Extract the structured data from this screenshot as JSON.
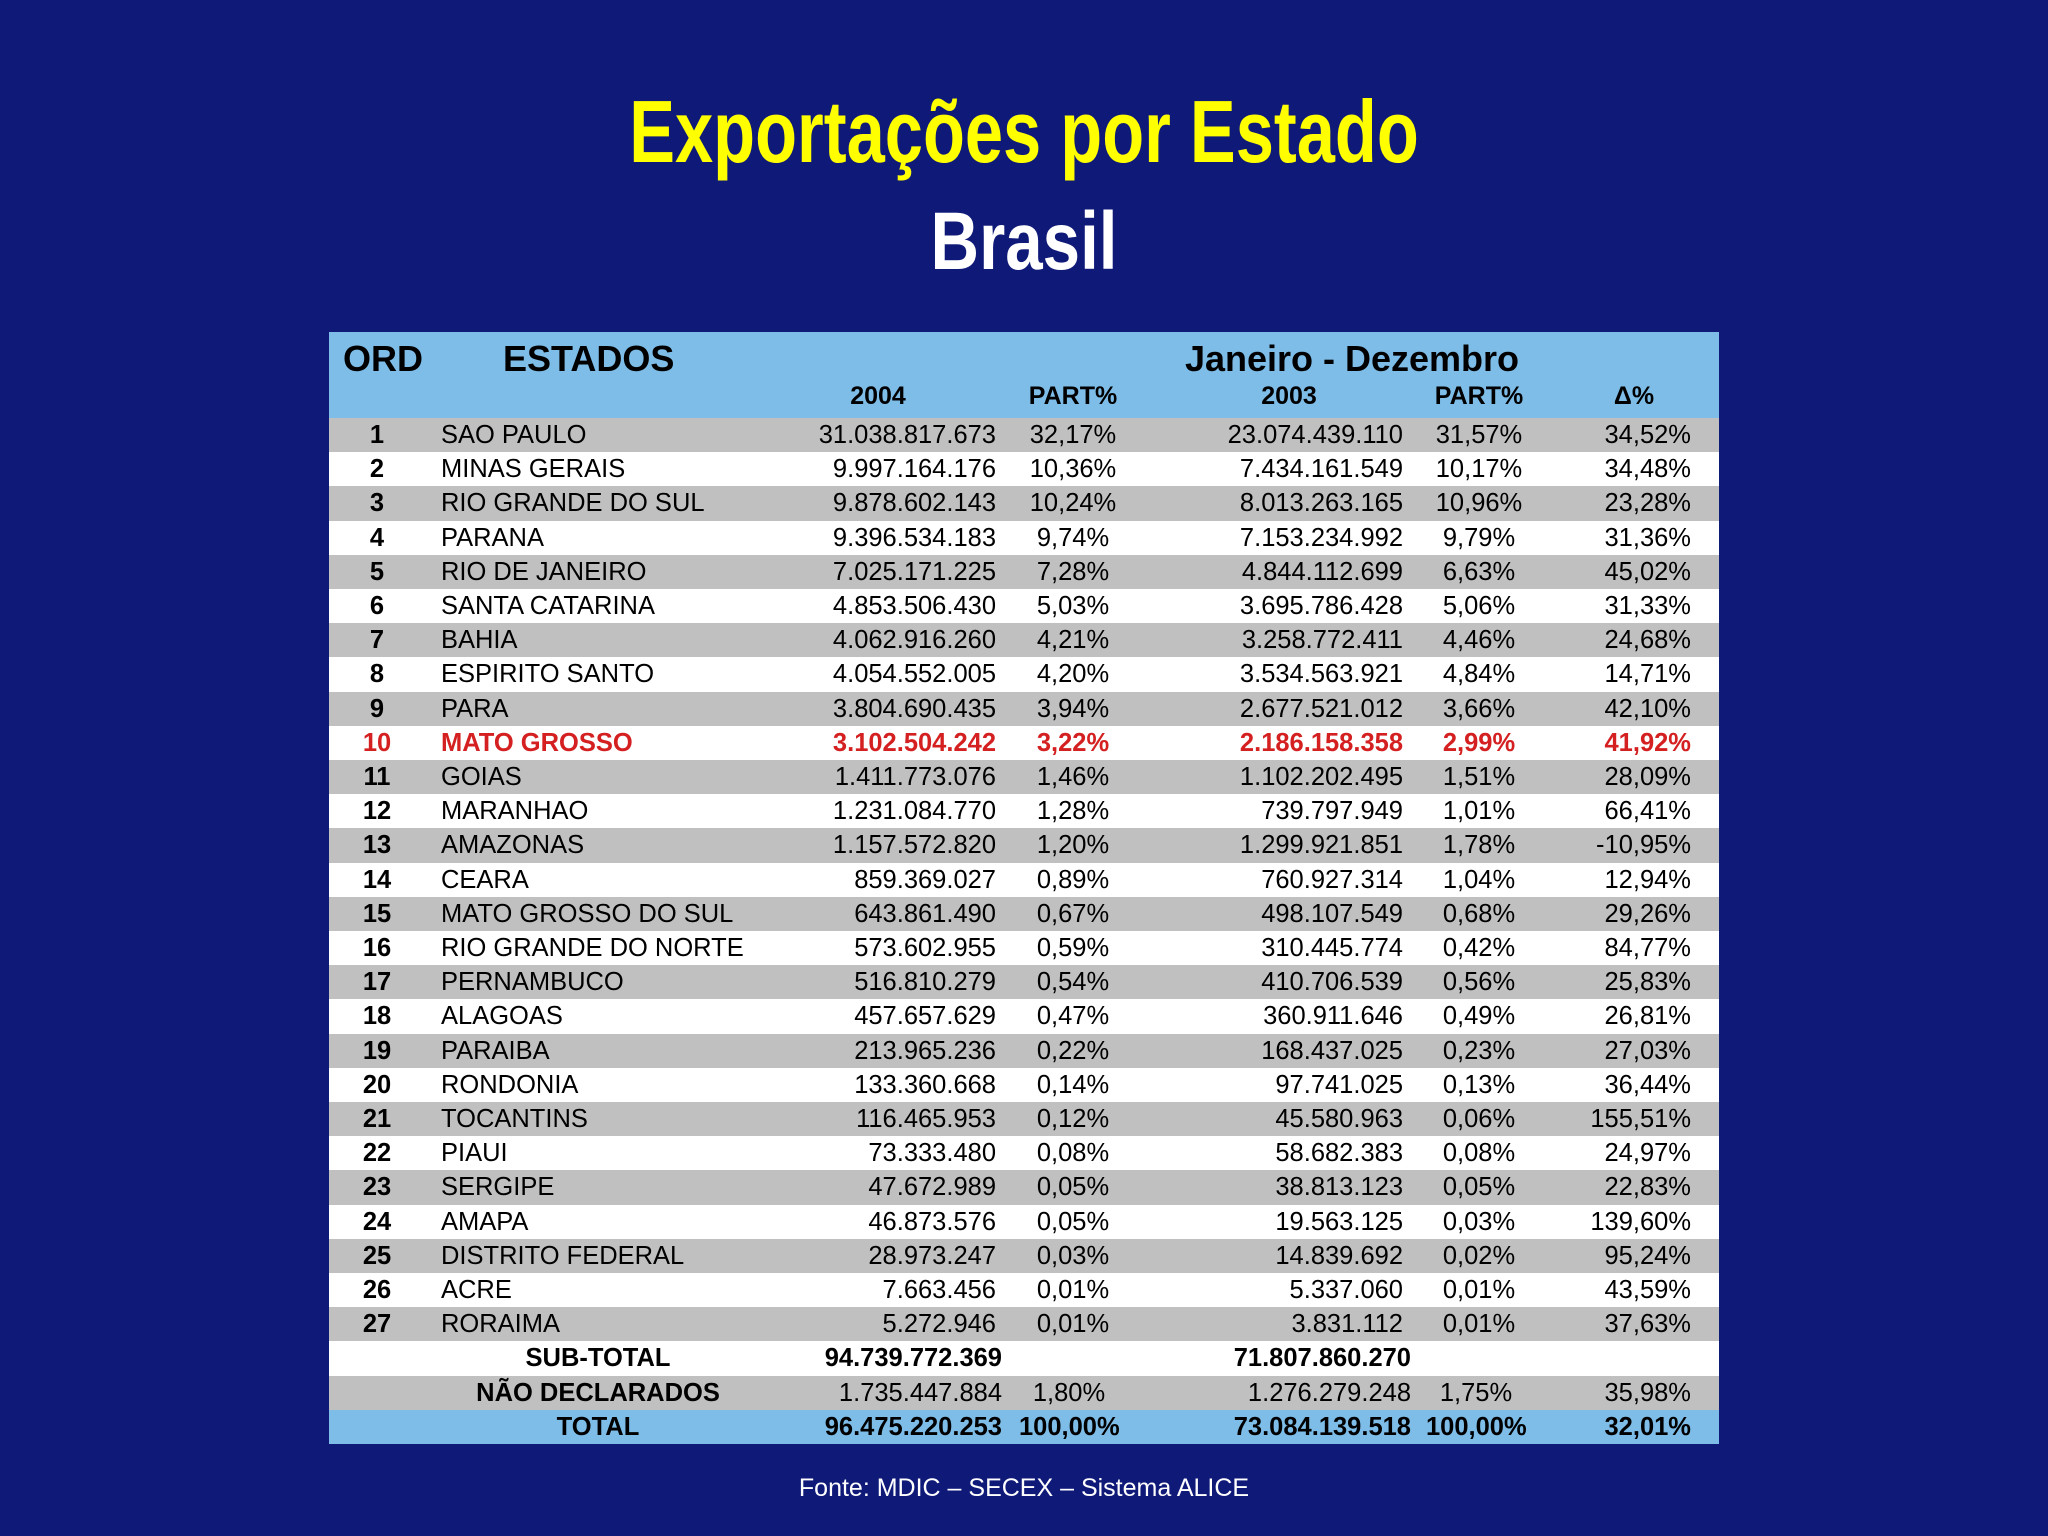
{
  "title": "Exportações por Estado",
  "subtitle": "Brasil",
  "table": {
    "headers": {
      "ord": "ORD",
      "estados": "ESTADOS",
      "period": "Janeiro - Dezembro",
      "y2004": "2004",
      "part2004": "PART%",
      "y2003": "2003",
      "part2003": "PART%",
      "delta": "Δ%"
    },
    "rows": [
      {
        "ord": "1",
        "name": "SAO PAULO",
        "v2004": "31.038.817.673",
        "p2004": "32,17%",
        "v2003": "23.074.439.110",
        "p2003": "31,57%",
        "delta": "34,52%"
      },
      {
        "ord": "2",
        "name": "MINAS GERAIS",
        "v2004": "9.997.164.176",
        "p2004": "10,36%",
        "v2003": "7.434.161.549",
        "p2003": "10,17%",
        "delta": "34,48%"
      },
      {
        "ord": "3",
        "name": "RIO GRANDE DO SUL",
        "v2004": "9.878.602.143",
        "p2004": "10,24%",
        "v2003": "8.013.263.165",
        "p2003": "10,96%",
        "delta": "23,28%"
      },
      {
        "ord": "4",
        "name": "PARANA",
        "v2004": "9.396.534.183",
        "p2004": "9,74%",
        "v2003": "7.153.234.992",
        "p2003": "9,79%",
        "delta": "31,36%"
      },
      {
        "ord": "5",
        "name": "RIO DE JANEIRO",
        "v2004": "7.025.171.225",
        "p2004": "7,28%",
        "v2003": "4.844.112.699",
        "p2003": "6,63%",
        "delta": "45,02%"
      },
      {
        "ord": "6",
        "name": "SANTA CATARINA",
        "v2004": "4.853.506.430",
        "p2004": "5,03%",
        "v2003": "3.695.786.428",
        "p2003": "5,06%",
        "delta": "31,33%"
      },
      {
        "ord": "7",
        "name": "BAHIA",
        "v2004": "4.062.916.260",
        "p2004": "4,21%",
        "v2003": "3.258.772.411",
        "p2003": "4,46%",
        "delta": "24,68%"
      },
      {
        "ord": "8",
        "name": "ESPIRITO SANTO",
        "v2004": "4.054.552.005",
        "p2004": "4,20%",
        "v2003": "3.534.563.921",
        "p2003": "4,84%",
        "delta": "14,71%"
      },
      {
        "ord": "9",
        "name": "PARA",
        "v2004": "3.804.690.435",
        "p2004": "3,94%",
        "v2003": "2.677.521.012",
        "p2003": "3,66%",
        "delta": "42,10%"
      },
      {
        "ord": "10",
        "name": "MATO GROSSO",
        "v2004": "3.102.504.242",
        "p2004": "3,22%",
        "v2003": "2.186.158.358",
        "p2003": "2,99%",
        "delta": "41,92%",
        "highlight": true
      },
      {
        "ord": "11",
        "name": "GOIAS",
        "v2004": "1.411.773.076",
        "p2004": "1,46%",
        "v2003": "1.102.202.495",
        "p2003": "1,51%",
        "delta": "28,09%"
      },
      {
        "ord": "12",
        "name": "MARANHAO",
        "v2004": "1.231.084.770",
        "p2004": "1,28%",
        "v2003": "739.797.949",
        "p2003": "1,01%",
        "delta": "66,41%"
      },
      {
        "ord": "13",
        "name": "AMAZONAS",
        "v2004": "1.157.572.820",
        "p2004": "1,20%",
        "v2003": "1.299.921.851",
        "p2003": "1,78%",
        "delta": "-10,95%"
      },
      {
        "ord": "14",
        "name": "CEARA",
        "v2004": "859.369.027",
        "p2004": "0,89%",
        "v2003": "760.927.314",
        "p2003": "1,04%",
        "delta": "12,94%"
      },
      {
        "ord": "15",
        "name": "MATO GROSSO DO SUL",
        "v2004": "643.861.490",
        "p2004": "0,67%",
        "v2003": "498.107.549",
        "p2003": "0,68%",
        "delta": "29,26%"
      },
      {
        "ord": "16",
        "name": "RIO GRANDE DO NORTE",
        "v2004": "573.602.955",
        "p2004": "0,59%",
        "v2003": "310.445.774",
        "p2003": "0,42%",
        "delta": "84,77%"
      },
      {
        "ord": "17",
        "name": "PERNAMBUCO",
        "v2004": "516.810.279",
        "p2004": "0,54%",
        "v2003": "410.706.539",
        "p2003": "0,56%",
        "delta": "25,83%"
      },
      {
        "ord": "18",
        "name": "ALAGOAS",
        "v2004": "457.657.629",
        "p2004": "0,47%",
        "v2003": "360.911.646",
        "p2003": "0,49%",
        "delta": "26,81%"
      },
      {
        "ord": "19",
        "name": "PARAIBA",
        "v2004": "213.965.236",
        "p2004": "0,22%",
        "v2003": "168.437.025",
        "p2003": "0,23%",
        "delta": "27,03%"
      },
      {
        "ord": "20",
        "name": "RONDONIA",
        "v2004": "133.360.668",
        "p2004": "0,14%",
        "v2003": "97.741.025",
        "p2003": "0,13%",
        "delta": "36,44%"
      },
      {
        "ord": "21",
        "name": "TOCANTINS",
        "v2004": "116.465.953",
        "p2004": "0,12%",
        "v2003": "45.580.963",
        "p2003": "0,06%",
        "delta": "155,51%"
      },
      {
        "ord": "22",
        "name": "PIAUI",
        "v2004": "73.333.480",
        "p2004": "0,08%",
        "v2003": "58.682.383",
        "p2003": "0,08%",
        "delta": "24,97%"
      },
      {
        "ord": "23",
        "name": "SERGIPE",
        "v2004": "47.672.989",
        "p2004": "0,05%",
        "v2003": "38.813.123",
        "p2003": "0,05%",
        "delta": "22,83%"
      },
      {
        "ord": "24",
        "name": "AMAPA",
        "v2004": "46.873.576",
        "p2004": "0,05%",
        "v2003": "19.563.125",
        "p2003": "0,03%",
        "delta": "139,60%"
      },
      {
        "ord": "25",
        "name": "DISTRITO FEDERAL",
        "v2004": "28.973.247",
        "p2004": "0,03%",
        "v2003": "14.839.692",
        "p2003": "0,02%",
        "delta": "95,24%"
      },
      {
        "ord": "26",
        "name": "ACRE",
        "v2004": "7.663.456",
        "p2004": "0,01%",
        "v2003": "5.337.060",
        "p2003": "0,01%",
        "delta": "43,59%"
      },
      {
        "ord": "27",
        "name": "RORAIMA",
        "v2004": "5.272.946",
        "p2004": "0,01%",
        "v2003": "3.831.112",
        "p2003": "0,01%",
        "delta": "37,63%"
      }
    ],
    "subtotal": {
      "label": "SUB-TOTAL",
      "v2004": "94.739.772.369",
      "v2003": "71.807.860.270"
    },
    "nao_declarados": {
      "label": "NÃO DECLARADOS",
      "v2004": "1.735.447.884",
      "p2004": "1,80%",
      "v2003": "1.276.279.248",
      "p2003": "1,75%",
      "delta": "35,98%"
    },
    "total": {
      "label": "TOTAL",
      "v2004": "96.475.220.253",
      "p2004": "100,00%",
      "v2003": "73.084.139.518",
      "p2003": "100,00%",
      "delta": "32,01%"
    }
  },
  "source": "Fonte: MDIC – SECEX – Sistema ALICE",
  "colors": {
    "background": "#0f1a78",
    "title": "#ffff00",
    "header": "#7dbde8",
    "row_gray": "#c0c0c0",
    "highlight": "#d42020"
  }
}
